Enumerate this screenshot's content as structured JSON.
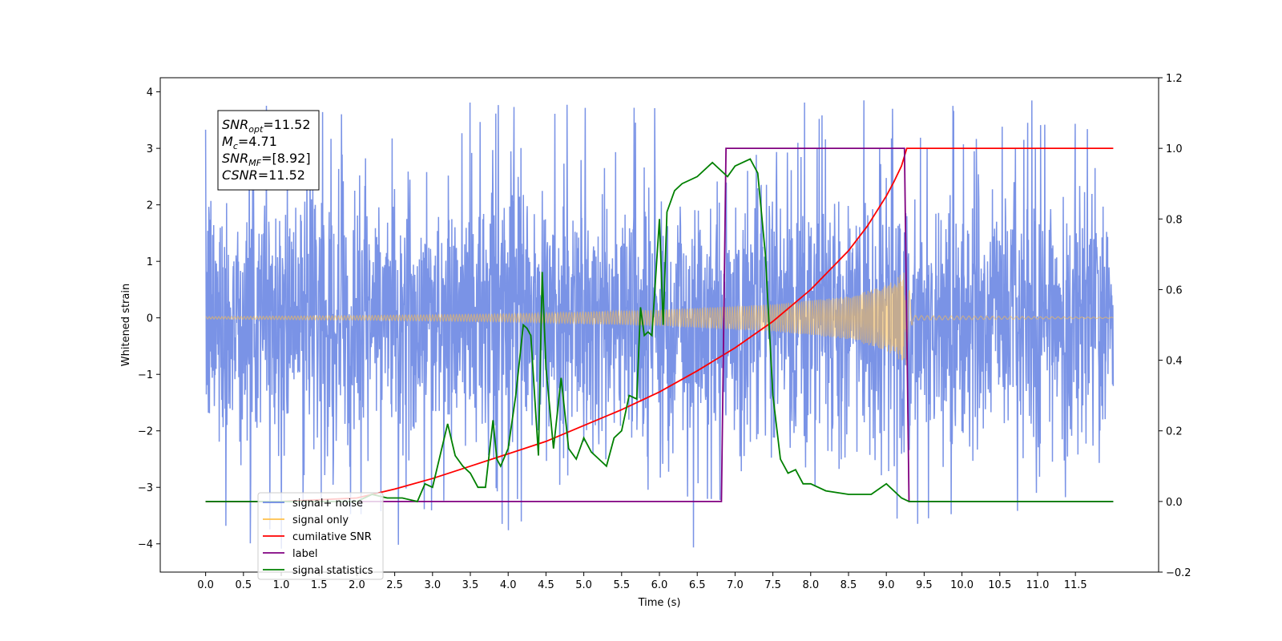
{
  "chart_data": {
    "type": "line",
    "title": "",
    "xlabel": "Time (s)",
    "ylabel": "Whitened strain",
    "y2label": "",
    "xlim": [
      -0.6,
      12.6
    ],
    "ylim": [
      -4.5,
      4.25
    ],
    "y2lim": [
      -0.2,
      1.2
    ],
    "x_ticks": [
      "0.0",
      "0.5",
      "1.0",
      "1.5",
      "2.0",
      "2.5",
      "3.0",
      "3.5",
      "4.0",
      "4.5",
      "5.0",
      "5.5",
      "6.0",
      "6.5",
      "7.0",
      "7.5",
      "8.0",
      "8.5",
      "9.0",
      "9.5",
      "10.0",
      "10.5",
      "11.0",
      "11.5"
    ],
    "y_ticks": [
      "4",
      "3",
      "2",
      "1",
      "0",
      "−1",
      "−2",
      "−3",
      "−4"
    ],
    "y2_ticks": [
      "1.2",
      "1.0",
      "0.8",
      "0.6",
      "0.4",
      "0.2",
      "0.0",
      "−0.2"
    ],
    "grid": false,
    "legend_position": "lower-left",
    "annotation": {
      "lines": [
        {
          "main": "SNR",
          "sub": "opt",
          "rest": "=11.52"
        },
        {
          "main": "M",
          "sub": "c",
          "rest": "=4.71"
        },
        {
          "main": "SNR",
          "sub": "MF",
          "rest": "=[8.92]"
        },
        {
          "main": "CSNR",
          "sub": "",
          "rest": "=11.52"
        }
      ]
    },
    "series": [
      {
        "name": "signal+ noise",
        "color": "#6b87e3",
        "axis": "left",
        "kind": "noise",
        "x_range": [
          0.0,
          12.0
        ],
        "typical_band": [
          -2.0,
          2.0
        ],
        "extremes": [
          -4.1,
          3.85
        ]
      },
      {
        "name": "signal only",
        "color": "#ffc04a",
        "axis": "left",
        "kind": "chirp",
        "x_range": [
          0.0,
          12.0
        ],
        "merger_time": 9.27,
        "envelope_points": [
          [
            0.0,
            0.02
          ],
          [
            2.0,
            0.04
          ],
          [
            4.0,
            0.07
          ],
          [
            6.0,
            0.14
          ],
          [
            7.5,
            0.24
          ],
          [
            8.5,
            0.38
          ],
          [
            9.0,
            0.58
          ],
          [
            9.27,
            0.85
          ],
          [
            9.35,
            0.04
          ],
          [
            12.0,
            0.01
          ]
        ]
      },
      {
        "name": "cumilative SNR",
        "color": "#ff0000",
        "axis": "right",
        "x": [
          0.0,
          1.0,
          2.0,
          2.5,
          3.0,
          3.5,
          4.0,
          4.5,
          5.0,
          5.5,
          6.0,
          6.5,
          7.0,
          7.5,
          8.0,
          8.5,
          8.75,
          9.0,
          9.1,
          9.2,
          9.27,
          9.3,
          12.0
        ],
        "values": [
          0.0,
          0.0,
          0.01,
          0.035,
          0.065,
          0.1,
          0.135,
          0.17,
          0.215,
          0.26,
          0.31,
          0.37,
          0.435,
          0.51,
          0.6,
          0.71,
          0.78,
          0.865,
          0.905,
          0.95,
          1.0,
          1.0,
          1.0
        ]
      },
      {
        "name": "label",
        "color": "#800080",
        "axis": "right",
        "x": [
          0.0,
          6.82,
          6.88,
          9.24,
          9.3,
          12.0
        ],
        "values": [
          0.0,
          0.0,
          1.0,
          1.0,
          0.0,
          0.0
        ]
      },
      {
        "name": "signal statistics",
        "color": "#008000",
        "axis": "right",
        "x": [
          0.0,
          2.0,
          2.2,
          2.4,
          2.6,
          2.8,
          2.9,
          3.0,
          3.2,
          3.3,
          3.4,
          3.5,
          3.6,
          3.7,
          3.8,
          3.85,
          3.9,
          4.0,
          4.1,
          4.2,
          4.25,
          4.3,
          4.4,
          4.45,
          4.5,
          4.6,
          4.7,
          4.75,
          4.8,
          4.9,
          5.0,
          5.1,
          5.2,
          5.3,
          5.4,
          5.5,
          5.6,
          5.7,
          5.75,
          5.8,
          5.85,
          5.9,
          6.0,
          6.05,
          6.1,
          6.2,
          6.3,
          6.5,
          6.7,
          6.8,
          6.9,
          7.0,
          7.1,
          7.2,
          7.3,
          7.4,
          7.5,
          7.6,
          7.7,
          7.8,
          7.9,
          8.0,
          8.2,
          8.5,
          8.8,
          9.0,
          9.1,
          9.2,
          9.3,
          10.0,
          12.0
        ],
        "values": [
          0.0,
          0.0,
          0.02,
          0.01,
          0.01,
          0.0,
          0.05,
          0.04,
          0.22,
          0.13,
          0.1,
          0.08,
          0.04,
          0.04,
          0.23,
          0.12,
          0.1,
          0.15,
          0.3,
          0.5,
          0.49,
          0.47,
          0.13,
          0.65,
          0.38,
          0.15,
          0.35,
          0.25,
          0.15,
          0.12,
          0.18,
          0.14,
          0.12,
          0.1,
          0.18,
          0.2,
          0.3,
          0.29,
          0.55,
          0.47,
          0.48,
          0.47,
          0.8,
          0.5,
          0.82,
          0.88,
          0.9,
          0.92,
          0.96,
          0.94,
          0.92,
          0.95,
          0.96,
          0.97,
          0.93,
          0.7,
          0.3,
          0.12,
          0.08,
          0.09,
          0.05,
          0.05,
          0.03,
          0.02,
          0.02,
          0.05,
          0.03,
          0.01,
          0.0,
          0.0,
          0.0
        ]
      }
    ],
    "legend": [
      {
        "label": "signal+ noise",
        "color": "#6b87e3"
      },
      {
        "label": "signal only",
        "color": "#ffc04a"
      },
      {
        "label": "cumilative SNR",
        "color": "#ff0000"
      },
      {
        "label": "label",
        "color": "#800080"
      },
      {
        "label": "signal statistics",
        "color": "#008000"
      }
    ]
  }
}
